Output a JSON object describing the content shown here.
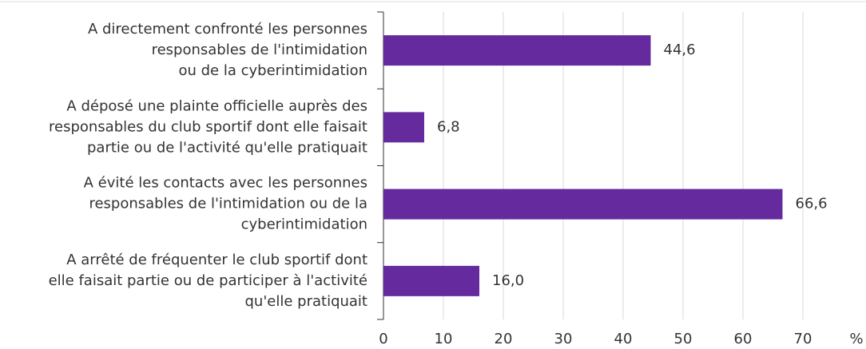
{
  "chart_data": {
    "type": "bar",
    "orientation": "horizontal",
    "categories": [
      [
        "A directement confronté les personnes",
        "responsables de l'intimidation",
        "ou de la cyberintimidation"
      ],
      [
        "A déposé une plainte officielle auprès des",
        "responsables du club sportif dont elle faisait",
        "partie ou de l'activité qu'elle pratiquait"
      ],
      [
        "A évité les contacts avec les personnes",
        "responsables de l'intimidation ou de la",
        "cyberintimidation"
      ],
      [
        "A arrêté de fréquenter le club sportif dont",
        "elle faisait partie ou de participer à l'activité",
        "qu'elle pratiquait"
      ]
    ],
    "values": [
      44.6,
      6.8,
      66.6,
      16.0
    ],
    "value_labels": [
      "44,6",
      "6,8",
      "66,6",
      "16,0"
    ],
    "color": "#652b9e",
    "xlim": [
      0,
      80
    ],
    "xticks": [
      0,
      10,
      20,
      30,
      40,
      50,
      60,
      70
    ],
    "x_unit": "%",
    "grid": true
  }
}
